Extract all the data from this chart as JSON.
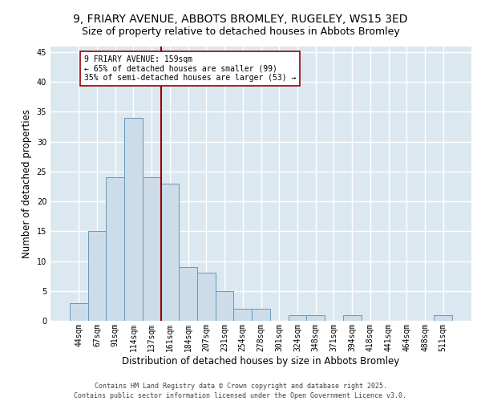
{
  "title_line1": "9, FRIARY AVENUE, ABBOTS BROMLEY, RUGELEY, WS15 3ED",
  "title_line2": "Size of property relative to detached houses in Abbots Bromley",
  "xlabel": "Distribution of detached houses by size in Abbots Bromley",
  "ylabel": "Number of detached properties",
  "categories": [
    "44sqm",
    "67sqm",
    "91sqm",
    "114sqm",
    "137sqm",
    "161sqm",
    "184sqm",
    "207sqm",
    "231sqm",
    "254sqm",
    "278sqm",
    "301sqm",
    "324sqm",
    "348sqm",
    "371sqm",
    "394sqm",
    "418sqm",
    "441sqm",
    "464sqm",
    "488sqm",
    "511sqm"
  ],
  "values": [
    3,
    15,
    24,
    34,
    24,
    23,
    9,
    8,
    5,
    2,
    2,
    0,
    1,
    1,
    0,
    1,
    0,
    0,
    0,
    0,
    1
  ],
  "bar_color": "#ccdce8",
  "bar_edge_color": "#6699bb",
  "vline_color": "#990000",
  "vline_x_index": 5,
  "annotation_text": "9 FRIARY AVENUE: 159sqm\n← 65% of detached houses are smaller (99)\n35% of semi-detached houses are larger (53) →",
  "annotation_box_facecolor": "#ffffff",
  "annotation_box_edgecolor": "#990000",
  "ylim": [
    0,
    46
  ],
  "yticks": [
    0,
    5,
    10,
    15,
    20,
    25,
    30,
    35,
    40,
    45
  ],
  "background_color": "#dce8f0",
  "grid_color": "#ffffff",
  "footer_text": "Contains HM Land Registry data © Crown copyright and database right 2025.\nContains public sector information licensed under the Open Government Licence v3.0.",
  "title_fontsize": 10,
  "subtitle_fontsize": 9,
  "axis_label_fontsize": 8.5,
  "tick_fontsize": 7,
  "annotation_fontsize": 7,
  "footer_fontsize": 6
}
